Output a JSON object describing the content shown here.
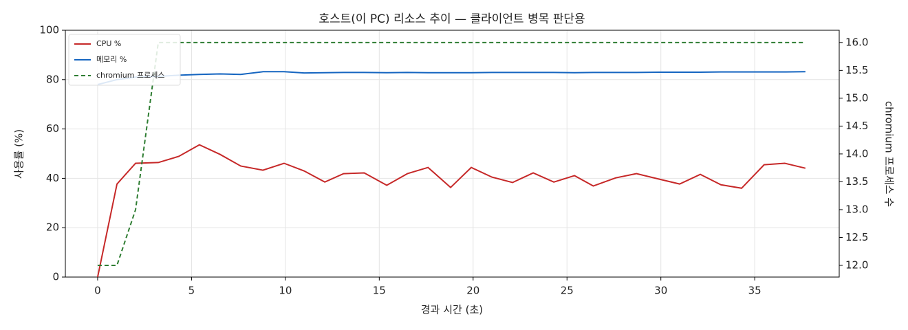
{
  "chart_data": {
    "type": "line",
    "title": "호스트(이 PC) 리소스 추이 — 클라이언트 병목 판단용",
    "xlabel": "경과 시간 (초)",
    "ylabel": "사용률 (%)",
    "y2label": "chromium 프로세스 수",
    "x": [
      0,
      1.03,
      2.02,
      3.23,
      4.32,
      5.42,
      6.52,
      7.62,
      8.8,
      9.93,
      11.0,
      12.1,
      13.1,
      14.2,
      15.4,
      16.5,
      17.6,
      18.8,
      19.9,
      21.0,
      22.1,
      23.2,
      24.3,
      25.4,
      26.4,
      27.6,
      28.7,
      29.9,
      31.0,
      32.1,
      33.2,
      34.3,
      35.5,
      36.6,
      37.7
    ],
    "series": [
      {
        "name": "CPU %",
        "color": "#c62828",
        "dash": false,
        "axis": "y",
        "values": [
          0,
          37.7,
          46.1,
          46.4,
          48.9,
          53.6,
          49.7,
          45.0,
          43.3,
          46.1,
          43.0,
          38.5,
          41.9,
          42.2,
          37.2,
          41.9,
          44.4,
          36.3,
          44.4,
          40.5,
          38.3,
          42.2,
          38.5,
          41.1,
          36.9,
          40.2,
          41.9,
          39.7,
          37.7,
          41.6,
          37.4,
          36.0,
          45.5,
          46.1,
          44.1
        ]
      },
      {
        "name": "메모리 %",
        "color": "#1565c0",
        "dash": false,
        "axis": "y",
        "values": [
          78.0,
          80.0,
          81.0,
          81.3,
          81.8,
          82.1,
          82.3,
          82.1,
          83.2,
          83.2,
          82.7,
          82.8,
          82.9,
          82.9,
          82.8,
          82.9,
          82.8,
          82.8,
          82.8,
          82.9,
          82.9,
          82.9,
          82.9,
          82.8,
          82.9,
          82.9,
          82.9,
          83.0,
          83.0,
          83.0,
          83.1,
          83.1,
          83.1,
          83.1,
          83.2
        ]
      },
      {
        "name": "chromium 프로세스",
        "color": "#2e7d32",
        "dash": true,
        "axis": "y2",
        "values": [
          12,
          12,
          13,
          16,
          16,
          16,
          16,
          16,
          16,
          16,
          16,
          16,
          16,
          16,
          16,
          16,
          16,
          16,
          16,
          16,
          16,
          16,
          16,
          16,
          16,
          16,
          16,
          16,
          16,
          16,
          16,
          16,
          16,
          16,
          16
        ]
      }
    ],
    "xlim": [
      -1.72,
      39.5
    ],
    "xticks": [
      0,
      5,
      10,
      15,
      20,
      25,
      30,
      35
    ],
    "ylim": [
      0,
      100
    ],
    "yticks": [
      0,
      20,
      40,
      60,
      80,
      100
    ],
    "y2lim": [
      11.79,
      16.22
    ],
    "y2ticks": [
      {
        "value": 12,
        "label": "12.0"
      },
      {
        "value": 12.5,
        "label": "12.5"
      },
      {
        "value": 13,
        "label": "13.0"
      },
      {
        "value": 13.5,
        "label": "13.5"
      },
      {
        "value": 14,
        "label": "14.0"
      },
      {
        "value": 14.5,
        "label": "14.5"
      },
      {
        "value": 15,
        "label": "15.0"
      },
      {
        "value": 15.5,
        "label": "15.5"
      },
      {
        "value": 16,
        "label": "16.0"
      }
    ],
    "grid": true,
    "legend": "upper-left"
  }
}
